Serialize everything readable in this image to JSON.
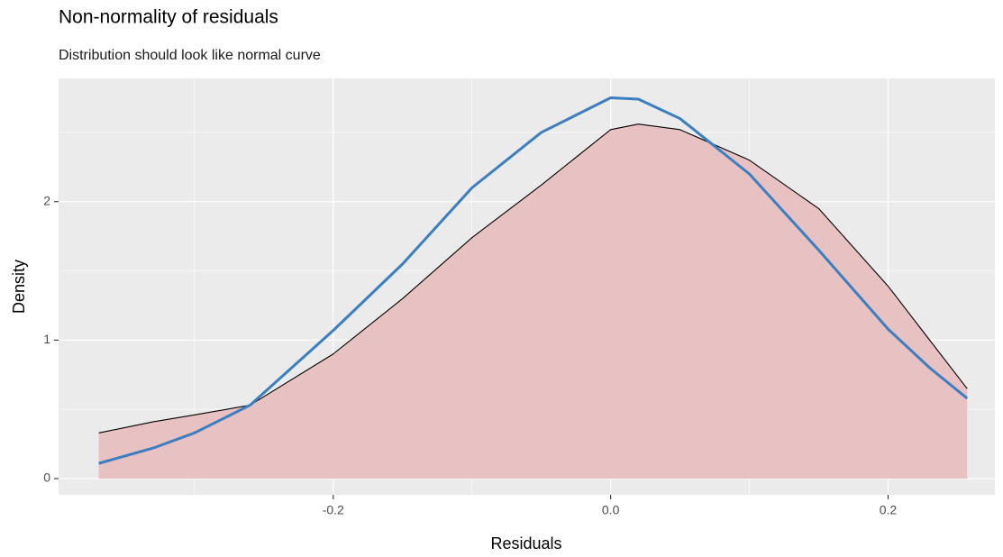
{
  "chart_data": {
    "type": "line",
    "title": "Non-normality of residuals",
    "subtitle": "Distribution should look like normal curve",
    "xlabel": "Residuals",
    "ylabel": "Density",
    "x": [
      -0.369,
      -0.33,
      -0.3,
      -0.26,
      -0.2,
      -0.15,
      -0.1,
      -0.05,
      0.0,
      0.02,
      0.05,
      0.1,
      0.15,
      0.2,
      0.23,
      0.257
    ],
    "series": [
      {
        "color": "#000000",
        "fill": "#e8c1c2",
        "values": [
          0.33,
          0.41,
          0.46,
          0.53,
          0.9,
          1.3,
          1.74,
          2.12,
          2.52,
          2.56,
          2.52,
          2.3,
          1.95,
          1.39,
          1.0,
          0.65
        ]
      },
      {
        "color": "#3b7fc0",
        "values": [
          0.11,
          0.22,
          0.33,
          0.53,
          1.07,
          1.55,
          2.1,
          2.5,
          2.75,
          2.74,
          2.6,
          2.2,
          1.65,
          1.08,
          0.8,
          0.58
        ]
      }
    ],
    "xlim": [
      -0.398,
      0.277
    ],
    "ylim": [
      -0.117,
      2.89
    ],
    "xticks": [
      -0.2,
      {
        "value": 0,
        "label": "0.0"
      },
      0.2
    ],
    "yticks": [
      0,
      1,
      2
    ],
    "xminor": [
      -0.3,
      -0.1,
      0.1
    ],
    "yminor": [
      0.5,
      1.5,
      2.5
    ],
    "grid": true
  }
}
